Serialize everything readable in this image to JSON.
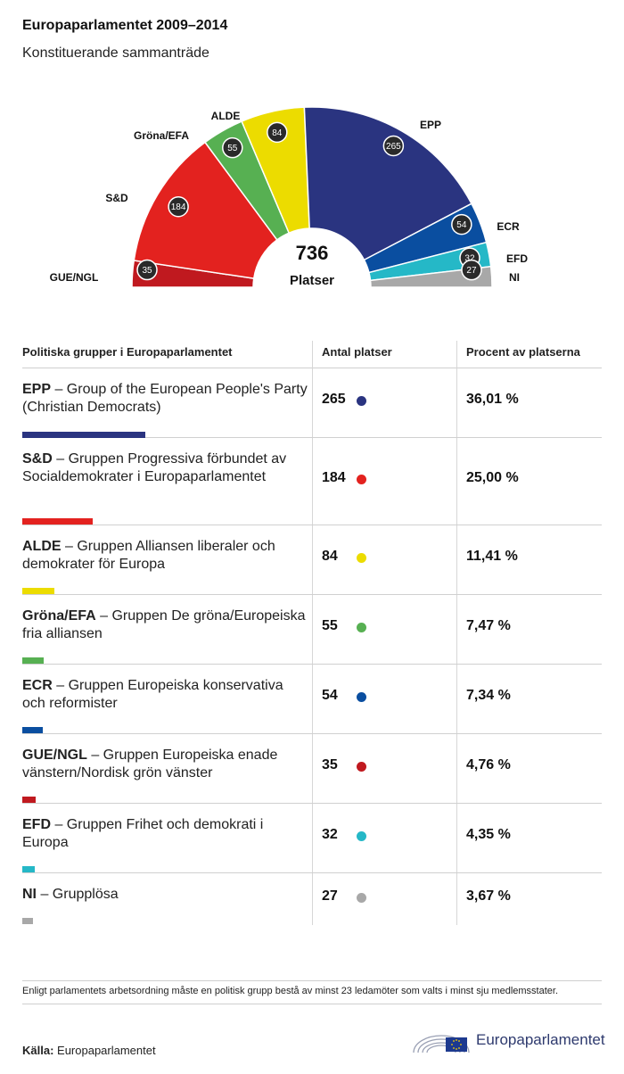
{
  "header": {
    "title": "Europaparlamentet 2009–2014",
    "subtitle": "Konstituerande sammanträde"
  },
  "chart_data": {
    "type": "pie",
    "layout": "hemicycle",
    "total": "736",
    "total_label": "Platser",
    "series": [
      {
        "key": "gue",
        "name": "GUE/NGL",
        "value": 35,
        "color": "#c0191f"
      },
      {
        "key": "sd",
        "name": "S&D",
        "value": 184,
        "color": "#e3221f"
      },
      {
        "key": "greens",
        "name": "Gröna/EFA",
        "value": 55,
        "color": "#57b052"
      },
      {
        "key": "alde",
        "name": "ALDE",
        "value": 84,
        "color": "#ecdc00"
      },
      {
        "key": "epp",
        "name": "EPP",
        "value": 265,
        "color": "#2a3480"
      },
      {
        "key": "ecr",
        "name": "ECR",
        "value": 54,
        "color": "#0a4ea0"
      },
      {
        "key": "efd",
        "name": "EFD",
        "value": 32,
        "color": "#25b8c7"
      },
      {
        "key": "ni",
        "name": "NI",
        "value": 27,
        "color": "#a8a8a8"
      }
    ]
  },
  "table": {
    "headers": [
      "Politiska grupper i Europaparlamentet",
      "Antal platser",
      "Procent av platserna"
    ],
    "rows": [
      {
        "abbr": "EPP",
        "desc": " – Group of the European People's Party (Christian Democrats)",
        "seats": "265",
        "percent": "36,01 %",
        "color": "#2a3480"
      },
      {
        "abbr": "S&D",
        "desc": " – Gruppen Progressiva förbundet av Socialdemokrater i Europaparlamentet",
        "seats": "184",
        "percent": "25,00 %",
        "color": "#e3221f"
      },
      {
        "abbr": "ALDE",
        "desc": " – Gruppen Alliansen liberaler och demokrater för Europa",
        "seats": "84",
        "percent": "11,41 %",
        "color": "#ecdc00"
      },
      {
        "abbr": "Gröna/EFA",
        "desc": " – Gruppen De gröna/Europeiska fria alliansen",
        "seats": "55",
        "percent": "7,47 %",
        "color": "#57b052"
      },
      {
        "abbr": "ECR",
        "desc": " – Gruppen Europeiska konservativa och reformister",
        "seats": "54",
        "percent": "7,34 %",
        "color": "#0a4ea0"
      },
      {
        "abbr": "GUE/NGL",
        "desc": " – Gruppen Europeiska enade vänstern/Nordisk grön vänster",
        "seats": "35",
        "percent": "4,76 %",
        "color": "#c0191f"
      },
      {
        "abbr": "EFD",
        "desc": " – Gruppen Frihet och demokrati i Europa",
        "seats": "32",
        "percent": "4,35 %",
        "color": "#25b8c7"
      },
      {
        "abbr": "NI",
        "desc": " – Grupplösa",
        "seats": "27",
        "percent": "3,67 %",
        "color": "#a8a8a8"
      }
    ]
  },
  "footer": {
    "note": "Enligt parlamentets arbetsordning måste en politisk grupp bestå av minst 23 ledamöter som valts i minst sju medlemsstater.",
    "source_label": "Källa:",
    "source_value": " Europaparlamentet",
    "logo_text": "Europaparlamentet"
  }
}
